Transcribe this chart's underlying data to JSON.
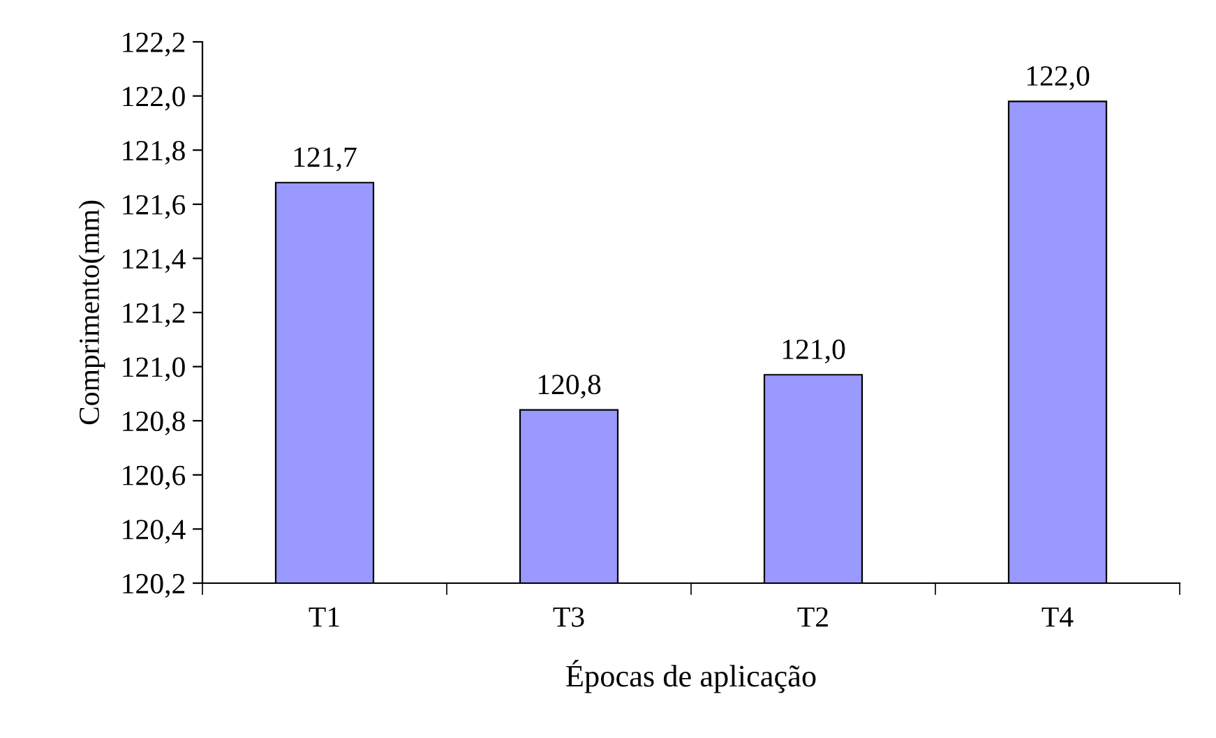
{
  "chart_data": {
    "type": "bar",
    "xlabel": "Épocas de aplicação",
    "ylabel": "Comprimento(mm)",
    "categories": [
      "T1",
      "T3",
      "T2",
      "T4"
    ],
    "values": [
      121.68,
      120.84,
      120.97,
      121.98
    ],
    "value_labels": [
      "121,7",
      "120,8",
      "121,0",
      "122,0"
    ],
    "color": "#9999ff",
    "ylim": [
      120.2,
      122.2
    ],
    "yticks": [
      {
        "value": 120.2,
        "label": "120,2"
      },
      {
        "value": 120.4,
        "label": "120,4"
      },
      {
        "value": 120.6,
        "label": "120,6"
      },
      {
        "value": 120.8,
        "label": "120,8"
      },
      {
        "value": 121.0,
        "label": "121,0"
      },
      {
        "value": 121.2,
        "label": "121,2"
      },
      {
        "value": 121.4,
        "label": "121,4"
      },
      {
        "value": 121.6,
        "label": "121,6"
      },
      {
        "value": 121.8,
        "label": "121,8"
      },
      {
        "value": 122.0,
        "label": "122,0"
      },
      {
        "value": 122.2,
        "label": "122,2"
      }
    ],
    "grid": false
  }
}
